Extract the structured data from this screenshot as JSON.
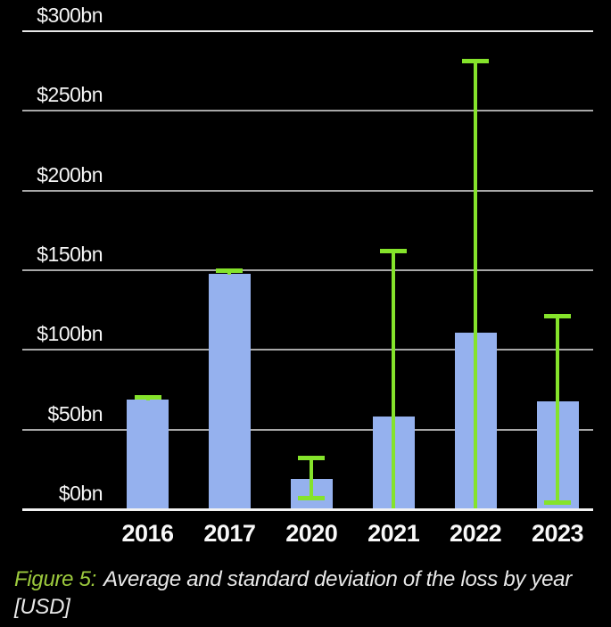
{
  "colors": {
    "background": "#000000",
    "bar": "#95b1ee",
    "error": "#85e32b",
    "grid_minor": "#a8a8a8",
    "grid_top": "#e8e8e8",
    "grid_baseline": "#f2f2f2",
    "tick_text": "#f5f5f5",
    "caption_text": "#e9e9e9",
    "caption_accent": "#9cc93d"
  },
  "chart_data": {
    "type": "bar",
    "title": "",
    "xlabel": "",
    "ylabel": "",
    "categories": [
      "2016",
      "2017",
      "2020",
      "2021",
      "2022",
      "2023"
    ],
    "series": [
      {
        "name": "Average loss",
        "values": [
          69,
          148,
          19,
          58,
          111,
          68
        ]
      }
    ],
    "error_bars": {
      "description": "standard deviation range in $bn, lower bound clipped at 0 for 2021 and 2022",
      "high": [
        70,
        149.5,
        32,
        162,
        281,
        121
      ],
      "low": [
        68,
        147,
        7,
        0,
        0,
        4.5
      ],
      "show_low_cap": [
        false,
        false,
        true,
        false,
        false,
        true
      ],
      "approx_std": [
        1.5,
        1.5,
        12.5,
        104,
        170,
        58
      ]
    },
    "yticks": [
      {
        "value": 300,
        "label": "$300bn"
      },
      {
        "value": 250,
        "label": "$250bn"
      },
      {
        "value": 200,
        "label": "$200bn"
      },
      {
        "value": 150,
        "label": "$150bn"
      },
      {
        "value": 100,
        "label": "$100bn"
      },
      {
        "value": 50,
        "label": "$50bn"
      },
      {
        "value": 0,
        "label": "$0bn"
      }
    ],
    "ylim": [
      0,
      300
    ],
    "grid": true,
    "legend_position": "none"
  },
  "caption": {
    "figure_label": "Figure 5:",
    "line1": "Average and standard deviation of the loss by year",
    "line2": "[USD]"
  }
}
